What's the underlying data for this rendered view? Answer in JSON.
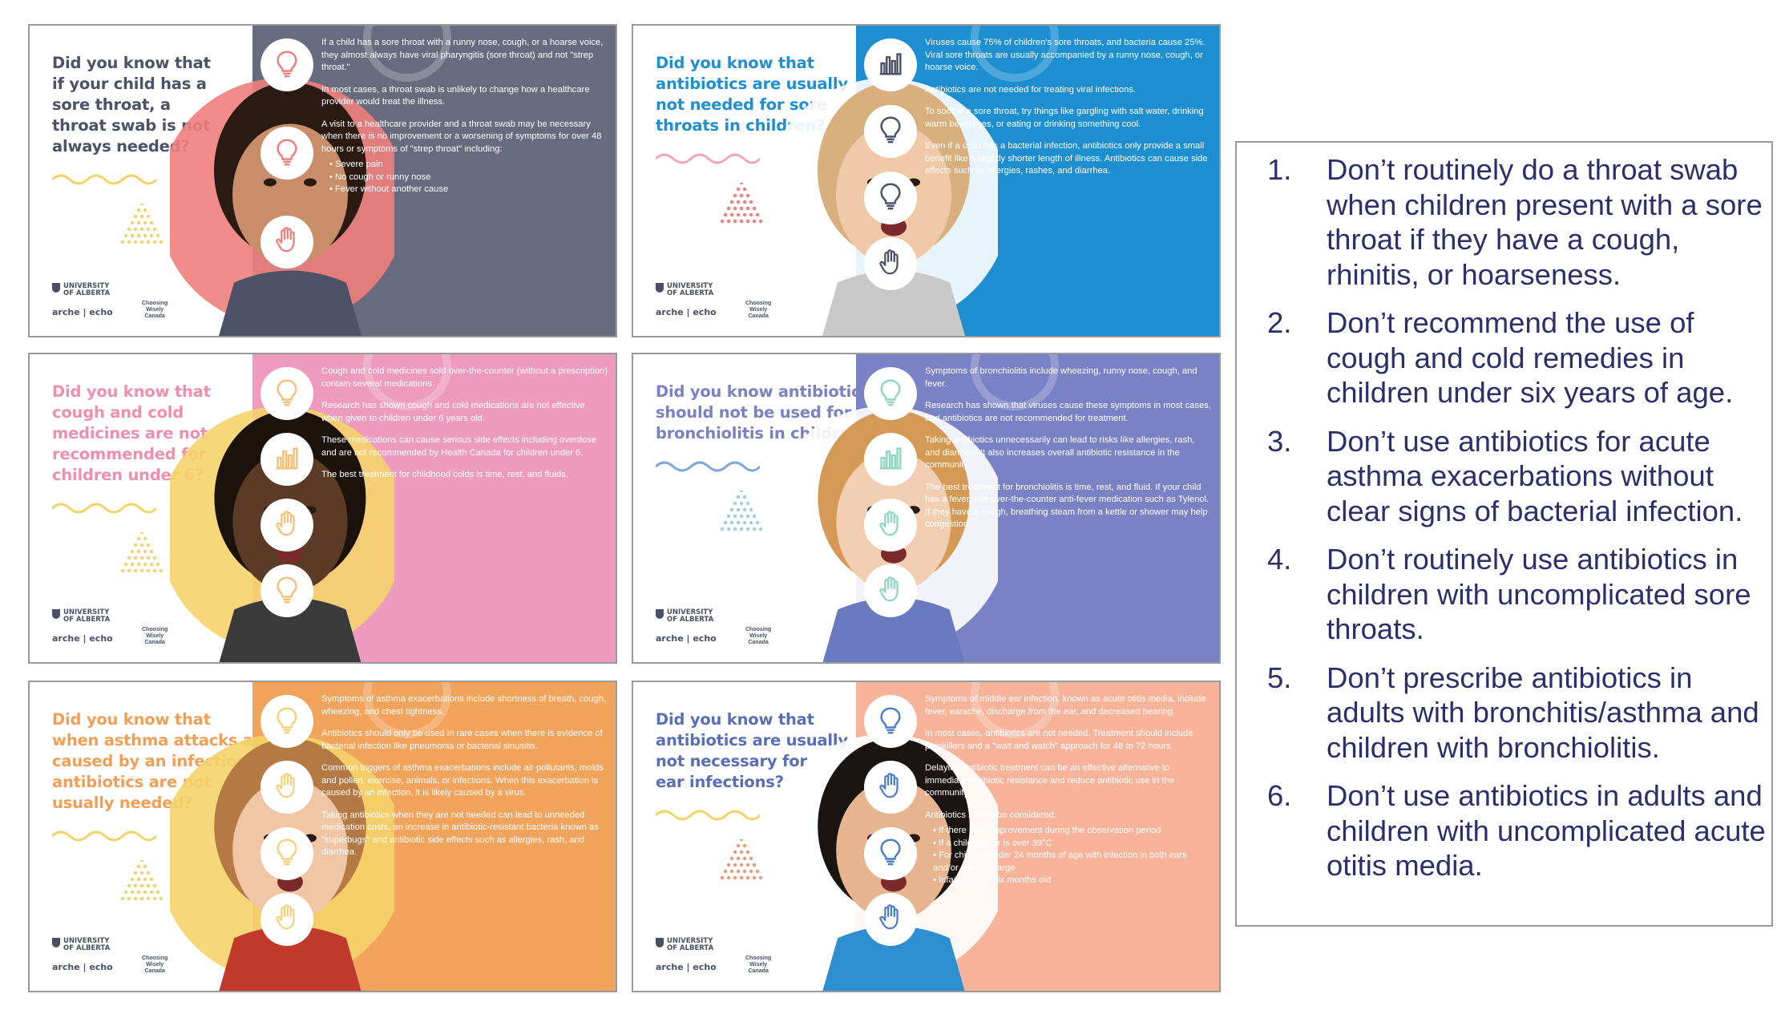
{
  "cards": [
    {
      "question": "Did you know that if your child has a sore throat, a throat swab is not always needed?",
      "question_lines": [
        "Did you know that",
        "if your child has a",
        "sore throat, a",
        "throat swab is not",
        "always needed?"
      ],
      "question_color": "#4d5268",
      "panel_color": "#666c7e",
      "icon_color": "#ee7f7c",
      "icons": [
        "lightbulb-icon",
        "lightbulb-icon",
        "hand-icon"
      ],
      "paragraphs": [
        "If a child has a sore throat with a runny nose, cough, or a hoarse voice, they almost always have viral pharyngitis (sore throat) and not \"strep throat.\"",
        "In most cases, a throat swab is unlikely to change how a healthcare provider would treat the illness.",
        "A visit to a healthcare provider and a throat swab may be necessary when there is no improvement or a worsening of symptoms for over 48 hours or symptoms of \"strep throat\" including:"
      ],
      "bullets": [
        "Severe pain",
        "No cough or runny nose",
        "Fever without another cause"
      ]
    },
    {
      "question": "Did you know that antibiotics are usually not needed for sore throats in children?",
      "question_lines": [
        "Did you know that",
        "antibiotics are usually",
        "not needed for sore",
        "throats in children?"
      ],
      "question_color": "#1f8fcf",
      "panel_color": "#1d8fd0",
      "icon_color": "#4d5268",
      "icons": [
        "bar-chart-icon",
        "lightbulb-icon",
        "lightbulb-icon",
        "hand-icon"
      ],
      "paragraphs": [
        "Viruses cause 75% of children's sore throats, and bacteria cause 25%. Viral sore throats are usually accompanied by a runny nose, cough, or hoarse voice.",
        "Antibiotics are not needed for treating viral infections.",
        "To soothe a sore throat, try things like gargling with salt water, drinking warm beverages, or eating or drinking something cool.",
        "Even if a child has a bacterial infection, antibiotics only provide a small benefit like a slightly shorter length of illness. Antibiotics can cause side effects such as allergies, rashes, and diarrhea."
      ],
      "bullets": []
    },
    {
      "question": "Did you know that cough and cold medicines are not recommended for children under 6?",
      "question_lines": [
        "Did you know that",
        "cough and cold",
        "medicines are not",
        "recommended for",
        "children under 6?"
      ],
      "question_color": "#ee8fae",
      "panel_color": "#ee9bbd",
      "icon_color": "#f3c27a",
      "icons": [
        "lightbulb-icon",
        "bar-chart-icon",
        "hand-icon",
        "lightbulb-icon"
      ],
      "paragraphs": [
        "Cough and cold medicines sold over-the-counter (without a prescription) contain several medications.",
        "Research has shown cough and cold medications are not effective when given to children under 6 years old.",
        "These medications can cause serious side effects including overdose and are not recommended by Health Canada for children under 6.",
        "The best treatment for childhood colds is time, rest, and fluids."
      ],
      "bullets": []
    },
    {
      "question": "Did you know antibiotics should not be used for bronchiolitis in children?",
      "question_lines": [
        "Did you know antibiotics",
        "should not be used for",
        "bronchiolitis in children?"
      ],
      "question_color": "#7b82c2",
      "panel_color": "#7a82c6",
      "icon_color": "#8fd7c2",
      "icons": [
        "lightbulb-icon",
        "bar-chart-icon",
        "hand-icon",
        "hand-icon"
      ],
      "paragraphs": [
        "Symptoms of bronchiolitis include wheezing, runny nose, cough, and fever.",
        "Research has shown that viruses cause these symptoms in most cases, and antibiotics are not recommended for treatment.",
        "Taking antibiotics unnecessarily can lead to risks like allergies, rash, and diarrhea. It also increases overall antibiotic resistance in the community.",
        "The best treatment for bronchiolitis is time, rest, and fluid. If your child has a fever, use over-the-counter anti-fever medication such as Tylenol. If they have a cough, breathing steam from a kettle or shower may help congestion."
      ],
      "bullets": []
    },
    {
      "question": "Did you know that when asthma attacks are caused by an infection, antibiotics are not usually needed?",
      "question_lines": [
        "Did you know that",
        "when asthma attacks are",
        "caused by an infection,",
        "antibiotics are not",
        "usually needed?"
      ],
      "question_color": "#f0a056",
      "panel_color": "#f2a35c",
      "icon_color": "#f5d27e",
      "icons": [
        "lightbulb-icon",
        "hand-icon",
        "lightbulb-icon",
        "hand-icon"
      ],
      "paragraphs": [
        "Symptoms of asthma exacerbations include shortness of breath, cough, wheezing, and chest tightness.",
        "Antibiotics should only be used in rare cases when there is evidence of bacterial infection like pneumonia or bacterial sinusitis.",
        "Common triggers of asthma exacerbations include air pollutants, molds and pollen, exercise, animals, or infections. When this exacerbation is caused by an infection, it is likely caused by a virus.",
        "Taking antibiotics when they are not needed can lead to unneeded medication costs, an increase in antibiotic-resistant bacteria known as \"superbugs\" and antibiotic side effects such as allergies, rash, and diarrhea."
      ],
      "bullets": []
    },
    {
      "question": "Did you know that antibiotics are usually not necessary for ear infections?",
      "question_lines": [
        "Did you know that",
        "antibiotics are usually",
        "not necessary for",
        "ear infections?"
      ],
      "question_color": "#5a6fb5",
      "panel_color": "#f7b49a",
      "icon_color": "#4d7fc8",
      "icons": [
        "lightbulb-icon",
        "hand-icon",
        "lightbulb-icon",
        "hand-icon"
      ],
      "paragraphs": [
        "Symptoms of middle ear infection, known as acute otitis media, include fever, earache, discharge from the ear, and decreased hearing.",
        "In most cases, antibiotics are not needed. Treatment should include painkillers and a \"wait and watch\" approach for 48 to 72 hours.",
        "Delaying antibiotic treatment can be an effective alternative to immediate antibiotic resistance and reduce antibiotic use in the community.",
        "Antibiotics should be considered:"
      ],
      "bullets": [
        "If there is no improvement during the observation period",
        "If a child's fever is over 39°C",
        "For children under 24 months of age with infection in both ears and/or ear discharge",
        "Infants under six months old"
      ]
    }
  ],
  "logos": {
    "university": [
      "UNIVERSITY",
      "OF ALBERTA"
    ],
    "arche": "arche | echo",
    "choosing_wisely": [
      "Choosing",
      "Wisely",
      "Canada"
    ]
  },
  "recommendations": [
    {
      "num": "1.",
      "text": "Don’t routinely do a throat swab when children present with a sore throat if they have a cough, rhinitis, or hoarseness."
    },
    {
      "num": "2.",
      "text": "Don’t recommend the use of cough and cold remedies in children under six years of age."
    },
    {
      "num": "3.",
      "text": "Don’t use antibiotics for acute asthma exacerbations without clear signs of bacterial infection."
    },
    {
      "num": "4.",
      "text": "Don’t routinely use antibiotics in children with uncomplicated sore throats."
    },
    {
      "num": "5.",
      "text": "Don’t prescribe antibiotics in adults with bronchitis/asthma and children with bronchiolitis."
    },
    {
      "num": "6.",
      "text": "Don’t use antibiotics in adults and children with uncomplicated acute otitis media."
    }
  ],
  "colors": {
    "list_text": "#2d2f6b",
    "border": "#9a9a9a"
  }
}
